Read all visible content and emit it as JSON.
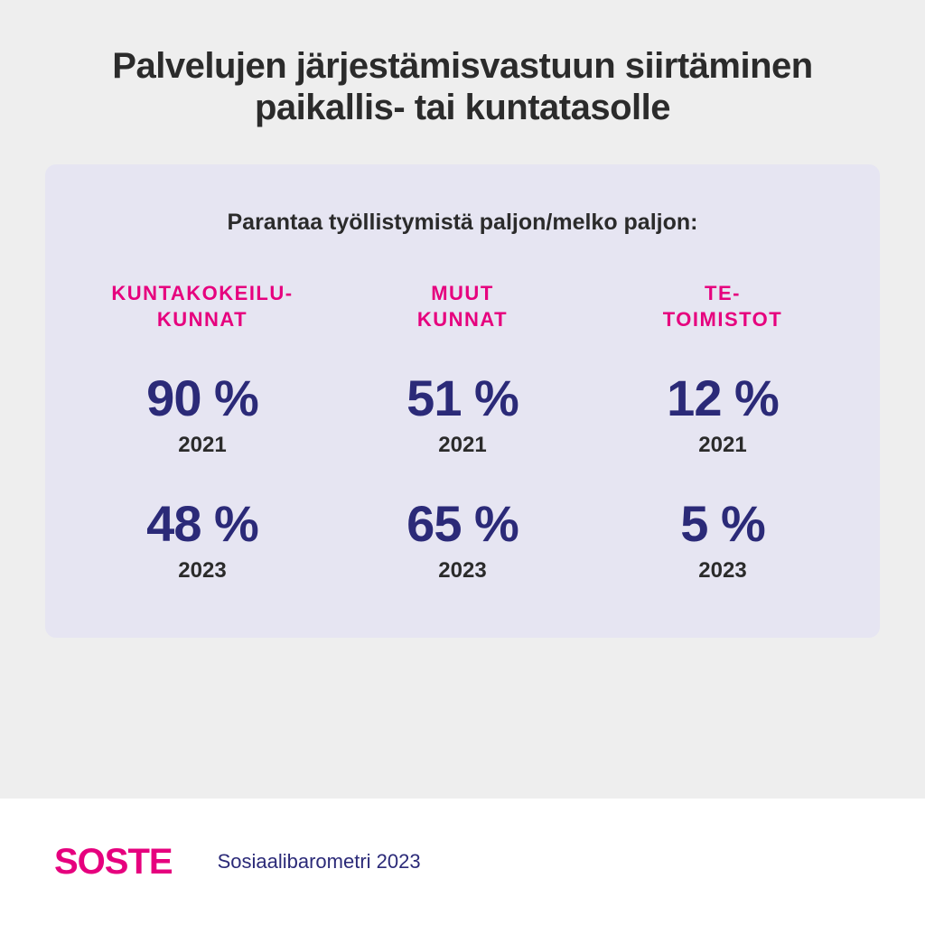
{
  "title": "Palvelujen järjestämisvastuun siirtäminen paikallis- tai kuntatasolle",
  "subtitle": "Parantaa työllistymistä paljon/melko paljon:",
  "title_fontsize": 40,
  "subtitle_fontsize": 25,
  "colors": {
    "page_bg": "#eeeeee",
    "card_bg": "#e6e5f2",
    "footer_bg": "#ffffff",
    "title_text": "#2b2b2b",
    "category_text": "#e6007e",
    "value_text": "#2b2a78",
    "year_text": "#2b2b2b",
    "logo": "#e6007e",
    "source_text": "#2b2a78"
  },
  "categories": [
    {
      "label": "KUNTAKOKEILU-\nKUNNAT"
    },
    {
      "label": "MUUT\nKUNNAT"
    },
    {
      "label": "TE-\nTOIMISTOT"
    }
  ],
  "category_fontsize": 22,
  "rows": [
    {
      "year": "2021",
      "values": [
        "90 %",
        "51 %",
        "12 %"
      ]
    },
    {
      "year": "2023",
      "values": [
        "48 %",
        "65 %",
        "5 %"
      ]
    }
  ],
  "value_fontsize": 56,
  "year_fontsize": 24,
  "logo_text": "SOSTE",
  "logo_fontsize": 40,
  "source": "Sosiaalibarometri 2023",
  "source_fontsize": 22
}
